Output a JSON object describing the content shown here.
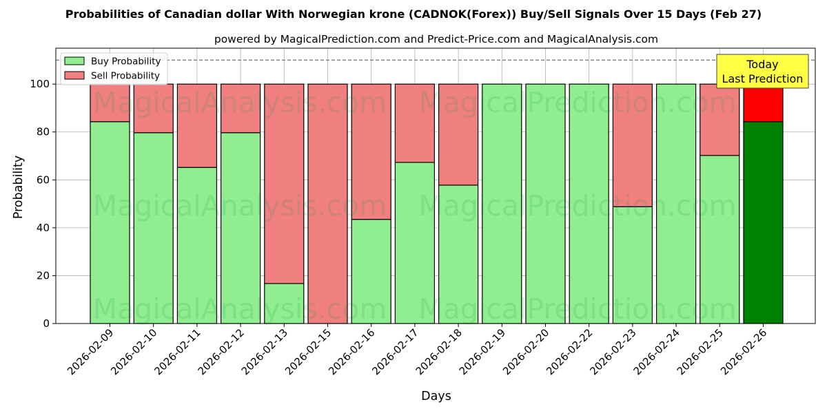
{
  "chart_data": {
    "type": "bar",
    "stacked": true,
    "title": "Probabilities of Canadian dollar With Norwegian krone (CADNOK(Forex)) Buy/Sell Signals Over 15 Days (Feb 27)",
    "subtitle": "powered by MagicalPrediction.com and Predict-Price.com and MagicalAnalysis.com",
    "xlabel": "Days",
    "ylabel": "Probability",
    "ylim": [
      0,
      115
    ],
    "yticks": [
      0,
      20,
      40,
      60,
      80,
      100
    ],
    "grid": true,
    "legend_position": "top-left",
    "reference_line": 110,
    "categories": [
      "2026-02-09",
      "2026-02-10",
      "2026-02-11",
      "2026-02-12",
      "2026-02-13",
      "2026-02-15",
      "2026-02-16",
      "2026-02-17",
      "2026-02-18",
      "2026-02-19",
      "2026-02-20",
      "2026-02-22",
      "2026-02-23",
      "2026-02-24",
      "2026-02-25",
      "2026-02-26"
    ],
    "series": [
      {
        "name": "Buy Probability",
        "color": "#90ee90",
        "highlight_color": "#008000",
        "values": [
          84.3,
          79.7,
          65.2,
          79.7,
          16.7,
          0,
          43.5,
          67.3,
          57.8,
          100,
          100,
          100,
          48.8,
          100,
          70.2,
          84.3
        ]
      },
      {
        "name": "Sell Probability",
        "color": "#f08080",
        "highlight_color": "#ff0000",
        "values": [
          15.7,
          20.3,
          34.8,
          20.3,
          83.3,
          100,
          56.5,
          32.7,
          42.2,
          0,
          0,
          0,
          51.2,
          0,
          29.8,
          15.7
        ]
      }
    ],
    "highlight_index": 15,
    "annotation": {
      "lines": [
        "Today",
        "Last Prediction"
      ],
      "fill": "#ffff44"
    },
    "watermarks": [
      "MagicalAnalysis.com",
      "MagicalPrediction.com"
    ]
  }
}
